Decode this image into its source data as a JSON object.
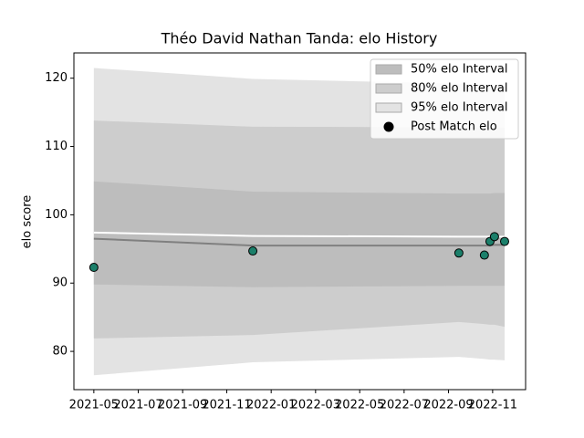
{
  "chart_data": {
    "type": "line",
    "title": "Théo David Nathan Tanda: elo History",
    "ylabel": "elo score",
    "xlim": [
      2021.258,
      2022.957
    ],
    "ylim": [
      74.4,
      123.7
    ],
    "xticks": [
      {
        "value": 2021.333,
        "label": "2021-05"
      },
      {
        "value": 2021.5,
        "label": "2021-07"
      },
      {
        "value": 2021.667,
        "label": "2021-09"
      },
      {
        "value": 2021.833,
        "label": "2021-11"
      },
      {
        "value": 2022.0,
        "label": "2022-01"
      },
      {
        "value": 2022.167,
        "label": "2022-03"
      },
      {
        "value": 2022.333,
        "label": "2022-05"
      },
      {
        "value": 2022.5,
        "label": "2022-07"
      },
      {
        "value": 2022.667,
        "label": "2022-09"
      },
      {
        "value": 2022.833,
        "label": "2022-11"
      }
    ],
    "yticks": [
      80,
      90,
      100,
      110,
      120
    ],
    "x": [
      2021.333,
      2021.931,
      2022.706,
      2022.802,
      2022.823,
      2022.84,
      2022.878
    ],
    "bands": [
      {
        "name": "95% elo Interval",
        "color": "#e3e3e3",
        "upper": [
          121.5,
          119.9,
          119.2,
          119.1,
          119.0,
          119.0,
          119.0
        ],
        "lower": [
          76.5,
          78.4,
          79.2,
          78.9,
          78.8,
          78.8,
          78.7
        ]
      },
      {
        "name": "80% elo Interval",
        "color": "#cdcdcd",
        "upper": [
          113.8,
          112.9,
          112.8,
          112.8,
          112.8,
          112.8,
          112.8
        ],
        "lower": [
          81.9,
          82.4,
          84.3,
          84.0,
          83.9,
          83.9,
          83.6
        ]
      },
      {
        "name": "50% elo Interval",
        "color": "#bdbdbd",
        "upper": [
          104.9,
          103.4,
          103.1,
          103.1,
          103.1,
          103.2,
          103.2
        ],
        "lower": [
          89.8,
          89.4,
          89.6,
          89.6,
          89.6,
          89.6,
          89.6
        ]
      }
    ],
    "lines": [
      {
        "color": "#808080",
        "values": [
          96.5,
          95.5,
          95.5,
          95.5,
          95.5,
          95.6,
          95.6
        ]
      },
      {
        "color": "#ffffff",
        "values": [
          97.4,
          96.9,
          96.8,
          96.8,
          96.8,
          96.8,
          96.8
        ]
      }
    ],
    "series": [
      {
        "name": "Post Match elo",
        "color": "#1b7f6a",
        "values": [
          92.3,
          94.7,
          94.4,
          94.1,
          96.1,
          96.8,
          96.1
        ]
      }
    ],
    "legend_order": [
      2,
      1,
      0
    ]
  }
}
